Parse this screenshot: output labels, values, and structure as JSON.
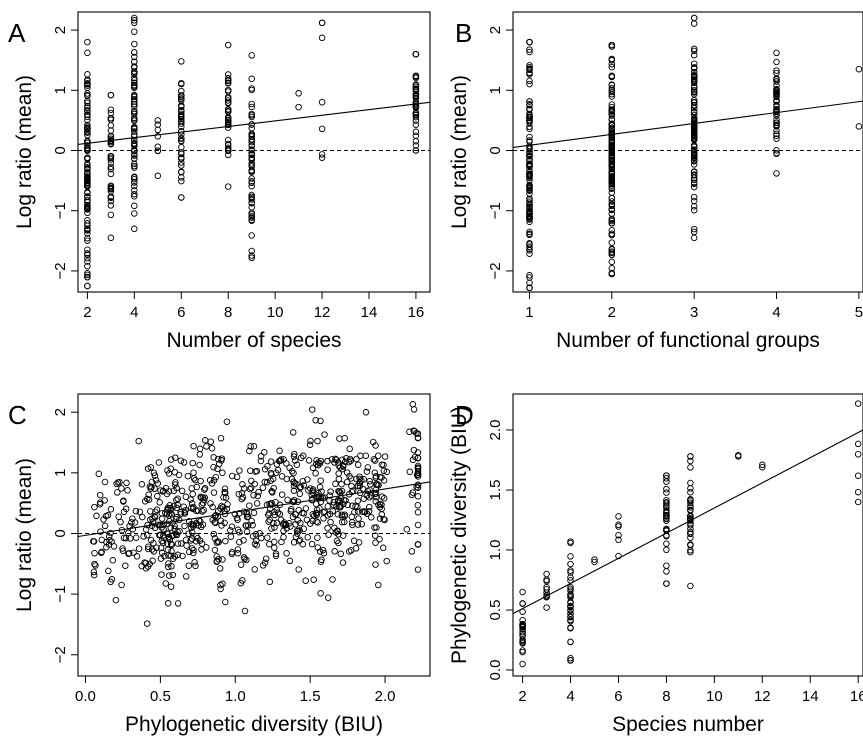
{
  "figure": {
    "background": "#ffffff",
    "ink": "#000000"
  },
  "chart_data": [
    {
      "panel": "A",
      "type": "scatter",
      "xlabel": "Number of species",
      "ylabel": "Log ratio (mean)",
      "xlim": [
        1.6,
        16.6
      ],
      "ylim": [
        -2.35,
        2.3
      ],
      "xticks": [
        2,
        4,
        6,
        8,
        10,
        12,
        14,
        16
      ],
      "yticks": [
        -2,
        -1,
        0,
        1,
        2
      ],
      "reference_line_y": 0,
      "fit_line": {
        "x": [
          1.6,
          16.6
        ],
        "y": [
          0.1,
          0.8
        ]
      },
      "columns": [
        {
          "x": 2,
          "min": -2.25,
          "max": 1.8,
          "n": 110
        },
        {
          "x": 3,
          "min": -1.45,
          "max": 0.92,
          "n": 40
        },
        {
          "x": 4,
          "min": -1.3,
          "max": 2.2,
          "n": 80
        },
        {
          "x": 5,
          "min": -0.42,
          "max": 0.5,
          "n": 8
        },
        {
          "x": 6,
          "min": -0.78,
          "max": 1.48,
          "n": 45
        },
        {
          "x": 8,
          "min": -0.6,
          "max": 1.75,
          "n": 40
        },
        {
          "x": 9,
          "min": -1.78,
          "max": 1.58,
          "n": 60
        },
        {
          "x": 11,
          "min": 0.72,
          "max": 0.95,
          "n": 2
        },
        {
          "x": 12,
          "min": -0.12,
          "max": 2.12,
          "n": 7
        },
        {
          "x": 16,
          "min": 0.0,
          "max": 1.6,
          "n": 40
        }
      ]
    },
    {
      "panel": "B",
      "type": "scatter",
      "xlabel": "Number of functional groups",
      "ylabel": "Log ratio (mean)",
      "xlim": [
        0.8,
        5.05
      ],
      "ylim": [
        -2.35,
        2.3
      ],
      "xticks": [
        1,
        2,
        3,
        4,
        5
      ],
      "yticks": [
        -2,
        -1,
        0,
        1,
        2
      ],
      "reference_line_y": 0,
      "fit_line": {
        "x": [
          0.8,
          5.05
        ],
        "y": [
          0.05,
          0.82
        ]
      },
      "columns": [
        {
          "x": 1,
          "min": -2.28,
          "max": 1.8,
          "n": 120
        },
        {
          "x": 2,
          "min": -2.05,
          "max": 1.75,
          "n": 140
        },
        {
          "x": 3,
          "min": -1.45,
          "max": 2.2,
          "n": 110
        },
        {
          "x": 4,
          "min": -0.38,
          "max": 1.62,
          "n": 50
        },
        {
          "x": 5,
          "min": 0.4,
          "max": 1.35,
          "n": 2
        }
      ]
    },
    {
      "panel": "C",
      "type": "scatter",
      "xlabel": "Phylogenetic diversity (BIU)",
      "ylabel": "Log ratio (mean)",
      "xlim": [
        -0.05,
        2.3
      ],
      "ylim": [
        -2.35,
        2.3
      ],
      "xticks": [
        0.0,
        0.5,
        1.0,
        1.5,
        2.0
      ],
      "xtick_labels": [
        "0.0",
        "0.5",
        "1.0",
        "1.5",
        "2.0"
      ],
      "yticks": [
        -2,
        -1,
        0,
        1,
        2
      ],
      "reference_line_y": 0,
      "fit_line": {
        "x": [
          -0.05,
          2.3
        ],
        "y": [
          -0.05,
          0.85
        ]
      },
      "cloud": {
        "n": 820,
        "x_groups": [
          0.45,
          0.55,
          0.62,
          0.75,
          0.88,
          1.1,
          1.25,
          1.4,
          1.55,
          1.7,
          1.78,
          1.95,
          2.22
        ],
        "y_spread": 0.55
      }
    },
    {
      "panel": "D",
      "type": "scatter",
      "xlabel": "Species number",
      "ylabel": "Phylogenetic diversity (BIU)",
      "xlim": [
        1.6,
        16.2
      ],
      "ylim": [
        -0.05,
        2.3
      ],
      "xticks": [
        2,
        4,
        6,
        8,
        10,
        12,
        14,
        16
      ],
      "yticks": [
        0.0,
        0.5,
        1.0,
        1.5,
        2.0
      ],
      "ytick_labels": [
        "0.0",
        "0.5",
        "1.0",
        "1.5",
        "2.0"
      ],
      "fit_line": {
        "x": [
          1.6,
          16.2
        ],
        "y": [
          0.47,
          2.0
        ]
      },
      "columns": [
        {
          "x": 2,
          "min": 0.05,
          "max": 0.65,
          "n": 25
        },
        {
          "x": 3,
          "min": 0.52,
          "max": 0.8,
          "n": 10
        },
        {
          "x": 4,
          "min": 0.08,
          "max": 1.07,
          "n": 35
        },
        {
          "x": 5,
          "min": 0.9,
          "max": 0.92,
          "n": 2
        },
        {
          "x": 6,
          "min": 0.95,
          "max": 1.28,
          "n": 6
        },
        {
          "x": 8,
          "min": 0.72,
          "max": 1.62,
          "n": 35
        },
        {
          "x": 9,
          "min": 0.7,
          "max": 1.78,
          "n": 35
        },
        {
          "x": 11,
          "min": 1.78,
          "max": 1.79,
          "n": 2
        },
        {
          "x": 12,
          "min": 1.69,
          "max": 1.71,
          "n": 2
        },
        {
          "x": 16,
          "min": 1.4,
          "max": 2.22,
          "n": 6
        }
      ]
    }
  ]
}
